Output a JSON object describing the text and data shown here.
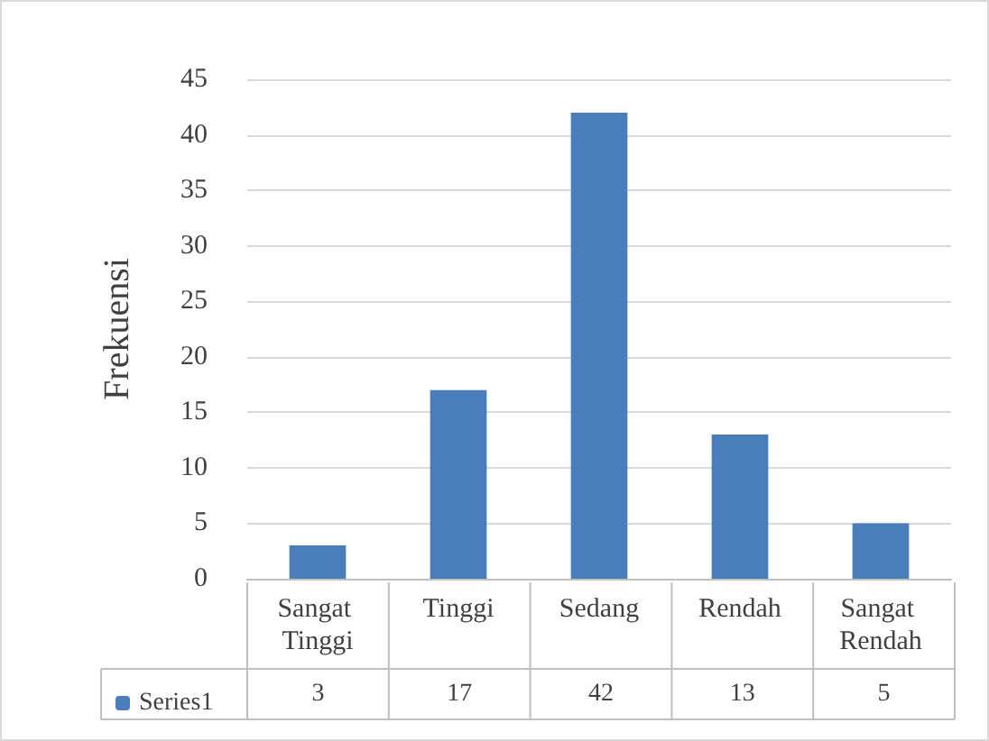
{
  "chart_data": {
    "type": "bar",
    "ylabel": "Frekuensi",
    "categories": [
      "Sangat Tinggi",
      "Tinggi",
      "Sedang",
      "Rendah",
      "Sangat Rendah"
    ],
    "series": [
      {
        "name": "Series1",
        "color": "#4a7ebb",
        "values": [
          3,
          17,
          42,
          13,
          5
        ]
      }
    ],
    "ylim": [
      0,
      45
    ],
    "yticks": [
      0,
      5,
      10,
      15,
      20,
      25,
      30,
      35,
      40,
      45
    ],
    "grid": "y",
    "legend": "bottom",
    "data_labels": true
  }
}
